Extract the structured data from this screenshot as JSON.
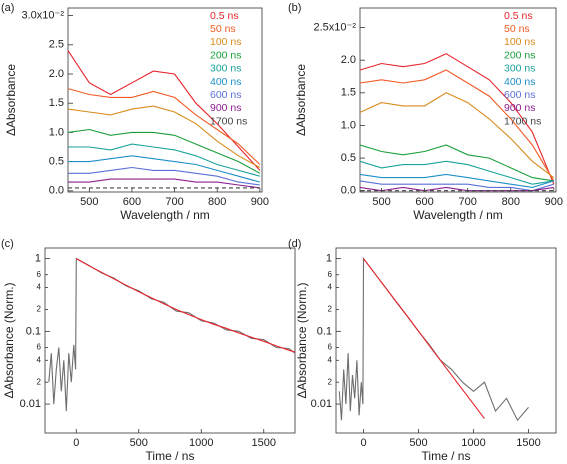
{
  "chart_data": [
    {
      "type": "line",
      "panel_label": "(a)",
      "xlabel": "Wavelength / nm",
      "ylabel": "ΔAbsorbance",
      "x": [
        450,
        500,
        550,
        600,
        650,
        700,
        750,
        800,
        850,
        900
      ],
      "xlim": [
        450,
        905
      ],
      "xticks": [
        500,
        600,
        700,
        800,
        900
      ],
      "ylim": [
        -0.0002,
        0.0313
      ],
      "yticks": [
        {
          "value": 0,
          "label": "0.0"
        },
        {
          "value": 0.005,
          "label": "0.5"
        },
        {
          "value": 0.01,
          "label": "1.0"
        },
        {
          "value": 0.015,
          "label": "1.5"
        },
        {
          "value": 0.02,
          "label": "2.0"
        },
        {
          "value": 0.025,
          "label": "2.5"
        },
        {
          "value": 0.03,
          "label": "3.0x10⁻²"
        }
      ],
      "series": [
        {
          "name": "0.5 ns",
          "color": "#e8242b",
          "values": [
            0.024,
            0.0185,
            0.0165,
            0.0185,
            0.0205,
            0.02,
            0.015,
            0.0115,
            0.0075,
            0.0035
          ]
        },
        {
          "name": "50 ns",
          "color": "#f15a24",
          "values": [
            0.0175,
            0.0165,
            0.016,
            0.016,
            0.017,
            0.016,
            0.013,
            0.0105,
            0.008,
            0.0045
          ]
        },
        {
          "name": "100 ns",
          "color": "#d98b1c",
          "values": [
            0.014,
            0.0135,
            0.013,
            0.014,
            0.0145,
            0.0135,
            0.0115,
            0.0085,
            0.006,
            0.004
          ]
        },
        {
          "name": "200 ns",
          "color": "#1a9e3a",
          "values": [
            0.01,
            0.0105,
            0.0095,
            0.01,
            0.01,
            0.0095,
            0.008,
            0.0065,
            0.005,
            0.003
          ]
        },
        {
          "name": "300 ns",
          "color": "#1aa39a",
          "values": [
            0.0075,
            0.0075,
            0.007,
            0.008,
            0.0075,
            0.007,
            0.006,
            0.0045,
            0.0035,
            0.0025
          ]
        },
        {
          "name": "400 ns",
          "color": "#1e90c8",
          "values": [
            0.005,
            0.005,
            0.0055,
            0.006,
            0.0055,
            0.005,
            0.0045,
            0.0035,
            0.0025,
            0.0015
          ]
        },
        {
          "name": "600 ns",
          "color": "#5b6fd6",
          "values": [
            0.003,
            0.003,
            0.0035,
            0.004,
            0.0035,
            0.0035,
            0.003,
            0.0025,
            0.0015,
            0.001
          ]
        },
        {
          "name": "900 ns",
          "color": "#8e1f8e",
          "values": [
            0.0015,
            0.0015,
            0.002,
            0.002,
            0.002,
            0.002,
            0.0015,
            0.0015,
            0.001,
            0.0005
          ]
        },
        {
          "name": "1700 ns",
          "color": "#444444",
          "line_style": "dashed",
          "values": [
            0.0005,
            0.0005,
            0.0005,
            0.0005,
            0.0005,
            0.0005,
            0.0005,
            0.0005,
            0.0005,
            0.0005
          ]
        }
      ]
    },
    {
      "type": "line",
      "panel_label": "(b)",
      "xlabel": "Wavelength / nm",
      "ylabel": "ΔAbsorbance",
      "x": [
        450,
        500,
        550,
        600,
        650,
        700,
        750,
        800,
        850,
        900
      ],
      "xlim": [
        450,
        905
      ],
      "xticks": [
        500,
        600,
        700,
        800,
        900
      ],
      "ylim": [
        -0.0002,
        0.028
      ],
      "yticks": [
        {
          "value": 0,
          "label": "0.0"
        },
        {
          "value": 0.005,
          "label": "0.5"
        },
        {
          "value": 0.01,
          "label": "1.0"
        },
        {
          "value": 0.015,
          "label": "1.5"
        },
        {
          "value": 0.02,
          "label": "2.0"
        },
        {
          "value": 0.025,
          "label": "2.5x10⁻²"
        }
      ],
      "series": [
        {
          "name": "0.5 ns",
          "color": "#e8242b",
          "values": [
            0.0185,
            0.0195,
            0.019,
            0.0195,
            0.021,
            0.019,
            0.017,
            0.0135,
            0.009,
            0.001
          ]
        },
        {
          "name": "50 ns",
          "color": "#f15a24",
          "values": [
            0.0165,
            0.017,
            0.0165,
            0.017,
            0.0185,
            0.0165,
            0.0145,
            0.011,
            0.007,
            0.0015
          ]
        },
        {
          "name": "100 ns",
          "color": "#d98b1c",
          "values": [
            0.012,
            0.0135,
            0.013,
            0.013,
            0.015,
            0.0135,
            0.011,
            0.008,
            0.0045,
            0.002
          ]
        },
        {
          "name": "200 ns",
          "color": "#1a9e3a",
          "values": [
            0.007,
            0.006,
            0.0055,
            0.006,
            0.007,
            0.0055,
            0.005,
            0.0035,
            0.002,
            0.0015
          ]
        },
        {
          "name": "300 ns",
          "color": "#1aa39a",
          "values": [
            0.0045,
            0.0035,
            0.004,
            0.004,
            0.0045,
            0.004,
            0.003,
            0.002,
            0.001,
            0.0015
          ]
        },
        {
          "name": "400 ns",
          "color": "#1e90c8",
          "values": [
            0.0025,
            0.002,
            0.002,
            0.002,
            0.0025,
            0.002,
            0.0015,
            0.001,
            0.0005,
            0.0015
          ]
        },
        {
          "name": "600 ns",
          "color": "#5b6fd6",
          "values": [
            0.0015,
            0.001,
            0.001,
            0.001,
            0.001,
            0.001,
            0.0005,
            0.0005,
            0,
            0.001
          ]
        },
        {
          "name": "900 ns",
          "color": "#8e1f8e",
          "values": [
            0.0005,
            0,
            0.0005,
            0,
            0.0005,
            0,
            0,
            0,
            0,
            0.0005
          ]
        },
        {
          "name": "1700 ns",
          "color": "#444444",
          "line_style": "dashed",
          "values": [
            0,
            0,
            0,
            0,
            0,
            0,
            0,
            0,
            0,
            0
          ]
        }
      ]
    },
    {
      "type": "line",
      "panel_label": "(c)",
      "xlabel": "Time / ns",
      "ylabel": "ΔAbsorbance (Norm.)",
      "log_scale": true,
      "xlim": [
        -250,
        1750
      ],
      "xticks": [
        0,
        500,
        1000,
        1500
      ],
      "ylim": [
        0.004,
        1.4
      ],
      "yticks": [
        0.01,
        {
          "value": 0.02,
          "label": "2"
        },
        {
          "value": 0.04,
          "label": "4"
        },
        {
          "value": 0.06,
          "label": "6"
        },
        0.1,
        {
          "value": 0.2,
          "label": "2"
        },
        {
          "value": 0.4,
          "label": "4"
        },
        {
          "value": 0.6,
          "label": "6"
        },
        1
      ],
      "series": [
        {
          "color": "#6e6e6e",
          "x": [
            -220,
            -200,
            -180,
            -160,
            -140,
            -120,
            -100,
            -80,
            -60,
            -40,
            -20,
            -5,
            0,
            100,
            200,
            300,
            400,
            500,
            600,
            700,
            800,
            900,
            1000,
            1100,
            1200,
            1300,
            1400,
            1500,
            1600,
            1700,
            1750
          ],
          "values": [
            0.02,
            0.05,
            0.01,
            0.03,
            0.06,
            0.015,
            0.04,
            0.008,
            0.05,
            0.02,
            0.065,
            0.03,
            1.0,
            0.81,
            0.64,
            0.54,
            0.42,
            0.36,
            0.28,
            0.25,
            0.19,
            0.18,
            0.14,
            0.13,
            0.105,
            0.1,
            0.08,
            0.077,
            0.06,
            0.058,
            0.05
          ]
        },
        {
          "color": "#e8242b",
          "x": [
            0,
            100,
            200,
            300,
            400,
            500,
            600,
            700,
            800,
            900,
            1000,
            1100,
            1200,
            1300,
            1400,
            1500,
            1600,
            1700,
            1750
          ],
          "values": [
            1.0,
            0.8,
            0.65,
            0.53,
            0.43,
            0.35,
            0.29,
            0.24,
            0.2,
            0.17,
            0.145,
            0.125,
            0.11,
            0.095,
            0.083,
            0.073,
            0.063,
            0.055,
            0.052
          ]
        }
      ]
    },
    {
      "type": "line",
      "panel_label": "(d)",
      "xlabel": "Time / ns",
      "ylabel": "ΔAbsorbance (Norm.)",
      "log_scale": true,
      "xlim": [
        -250,
        1750
      ],
      "xticks": [
        0,
        500,
        1000,
        1500
      ],
      "ylim": [
        0.004,
        1.4
      ],
      "yticks": [
        0.01,
        {
          "value": 0.02,
          "label": "2"
        },
        {
          "value": 0.04,
          "label": "4"
        },
        {
          "value": 0.06,
          "label": "6"
        },
        0.1,
        {
          "value": 0.2,
          "label": "2"
        },
        {
          "value": 0.4,
          "label": "4"
        },
        {
          "value": 0.6,
          "label": "6"
        },
        1
      ],
      "series": [
        {
          "color": "#6e6e6e",
          "x": [
            -220,
            -200,
            -180,
            -160,
            -140,
            -120,
            -100,
            -80,
            -60,
            -40,
            -20,
            -5,
            0,
            100,
            200,
            300,
            400,
            500,
            600,
            700,
            800,
            900,
            1000,
            1100,
            1200,
            1300,
            1400,
            1500
          ],
          "values": [
            0.015,
            0.006,
            0.03,
            0.01,
            0.05,
            0.008,
            0.025,
            0.012,
            0.04,
            0.007,
            0.02,
            0.01,
            1.0,
            0.63,
            0.4,
            0.25,
            0.16,
            0.1,
            0.065,
            0.04,
            0.03,
            0.02,
            0.015,
            0.02,
            0.008,
            0.012,
            0.006,
            0.009
          ]
        },
        {
          "color": "#e8242b",
          "x": [
            0,
            200,
            400,
            600,
            800,
            1000,
            1100
          ],
          "values": [
            1.0,
            0.4,
            0.16,
            0.063,
            0.025,
            0.01,
            0.0063
          ]
        }
      ]
    }
  ]
}
